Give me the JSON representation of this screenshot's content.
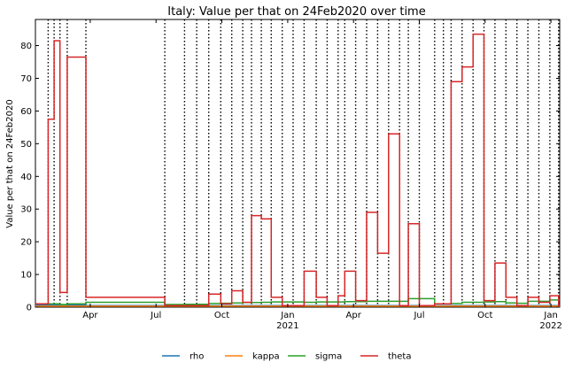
{
  "chart_data": {
    "type": "line",
    "title": "Italy: Value per that on 24Feb2020 over time",
    "xlabel": "",
    "ylabel": "Value per that on 24Feb2020",
    "ylim": [
      0,
      88
    ],
    "yticks": [
      0,
      10,
      20,
      30,
      40,
      50,
      60,
      70,
      80
    ],
    "x_range_months": [
      0.5,
      24.4
    ],
    "x_ticks": [
      {
        "pos": 3,
        "label": "Apr",
        "sub": ""
      },
      {
        "pos": 6,
        "label": "Jul",
        "sub": ""
      },
      {
        "pos": 9,
        "label": "Oct",
        "sub": ""
      },
      {
        "pos": 12,
        "label": "Jan",
        "sub": "2021"
      },
      {
        "pos": 15,
        "label": "Apr",
        "sub": ""
      },
      {
        "pos": 18,
        "label": "Jul",
        "sub": ""
      },
      {
        "pos": 21,
        "label": "Oct",
        "sub": ""
      },
      {
        "pos": 24,
        "label": "Jan",
        "sub": "2022"
      }
    ],
    "change_points_months": [
      1.08,
      1.35,
      1.62,
      1.95,
      2.8,
      6.4,
      7.3,
      7.85,
      8.4,
      8.95,
      9.45,
      9.95,
      10.35,
      10.8,
      11.25,
      11.75,
      12.25,
      12.75,
      13.3,
      13.8,
      14.3,
      14.6,
      15.1,
      15.6,
      16.1,
      16.6,
      17.1,
      17.5,
      18.0,
      18.7,
      19.1,
      19.45,
      19.95,
      20.45,
      20.95,
      21.45,
      21.95,
      22.45,
      22.95,
      23.45,
      23.95,
      24.35
    ],
    "series": [
      {
        "name": "rho",
        "color": "#1f77b4",
        "x": [
          0.5,
          1.08,
          2.8,
          6.4,
          24.4
        ],
        "y": [
          0.6,
          0.6,
          0.5,
          0.5,
          0.5
        ]
      },
      {
        "name": "kappa",
        "color": "#ff7f0e",
        "x": [
          0.5,
          1.08,
          2.8,
          6.4,
          24.4
        ],
        "y": [
          0.3,
          0.3,
          0.3,
          0.3,
          0.3
        ]
      },
      {
        "name": "sigma",
        "color": "#2ca02c",
        "x": [
          0.5,
          1.08,
          1.62,
          1.95,
          2.8,
          6.4,
          7.3,
          7.85,
          8.4,
          8.95,
          9.45,
          9.95,
          10.35,
          10.8,
          11.25,
          11.75,
          12.25,
          12.75,
          13.3,
          13.8,
          14.3,
          14.6,
          15.1,
          15.6,
          16.1,
          16.6,
          17.1,
          17.5,
          18.0,
          18.7,
          19.1,
          19.45,
          19.95,
          20.45,
          20.95,
          21.45,
          21.95,
          22.45,
          22.95,
          23.45,
          23.95,
          24.35,
          24.4
        ],
        "y": [
          1.0,
          1.0,
          0.8,
          1.0,
          1.5,
          0.8,
          0.9,
          0.9,
          1.1,
          1.2,
          1.3,
          1.4,
          1.4,
          1.5,
          1.6,
          1.6,
          1.6,
          1.5,
          1.6,
          1.6,
          1.6,
          1.7,
          1.7,
          1.8,
          1.8,
          1.8,
          1.8,
          2.6,
          2.6,
          1.0,
          1.0,
          1.1,
          1.5,
          1.5,
          1.6,
          1.7,
          1.3,
          1.2,
          1.8,
          1.8,
          2.2,
          2.2,
          2.2
        ]
      },
      {
        "name": "theta",
        "color": "#d62728",
        "x": [
          0.5,
          1.08,
          1.35,
          1.62,
          1.95,
          2.8,
          6.4,
          7.3,
          7.85,
          8.4,
          8.95,
          9.45,
          9.95,
          10.35,
          10.8,
          11.25,
          11.75,
          12.25,
          12.75,
          13.3,
          13.8,
          14.3,
          14.6,
          15.1,
          15.6,
          16.1,
          16.6,
          17.1,
          17.5,
          18.0,
          18.7,
          19.1,
          19.45,
          19.95,
          20.45,
          20.95,
          21.45,
          21.95,
          22.45,
          22.95,
          23.45,
          23.95,
          24.35,
          24.4
        ],
        "y": [
          1.0,
          57.5,
          81.5,
          4.5,
          76.5,
          3.0,
          0.5,
          0.5,
          0.5,
          4.0,
          1.0,
          5.0,
          1.5,
          28.0,
          27.0,
          3.0,
          0.5,
          0.5,
          11.0,
          3.0,
          0.5,
          3.5,
          11.0,
          2.0,
          29.0,
          16.5,
          53.0,
          0.5,
          25.5,
          0.5,
          1.0,
          1.0,
          69.0,
          73.5,
          83.5,
          2.0,
          13.5,
          3.0,
          0.5,
          3.0,
          1.5,
          3.5,
          0.5,
          0.5
        ]
      }
    ],
    "legend": {
      "placement": "bottom-center",
      "entries": [
        "rho",
        "kappa",
        "sigma",
        "theta"
      ]
    }
  }
}
